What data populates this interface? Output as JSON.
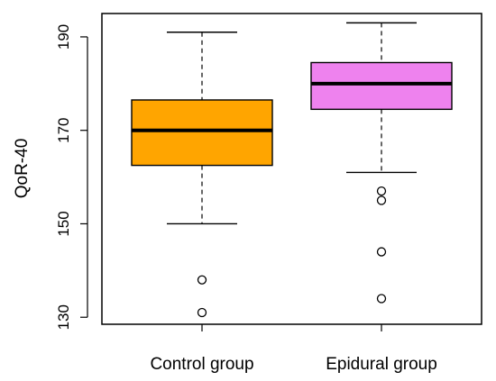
{
  "chart_data": {
    "type": "box",
    "title": "",
    "xlabel": "",
    "ylabel": "QoR-40",
    "ylim": [
      128.5,
      195
    ],
    "yticks": [
      130,
      150,
      170,
      190
    ],
    "categories": [
      "Control group",
      "Epidural group"
    ],
    "series": [
      {
        "category": "Control group",
        "color": "#FFA500",
        "whisker_low": 150,
        "q1": 162.5,
        "median": 170,
        "q3": 176.5,
        "whisker_high": 191,
        "outliers": [
          138,
          131
        ]
      },
      {
        "category": "Epidural group",
        "color": "#EE82EE",
        "whisker_low": 161,
        "q1": 174.5,
        "median": 180,
        "q3": 184.5,
        "whisker_high": 193,
        "outliers": [
          157,
          155,
          144,
          134
        ]
      }
    ],
    "grid": false,
    "legend": "none"
  }
}
